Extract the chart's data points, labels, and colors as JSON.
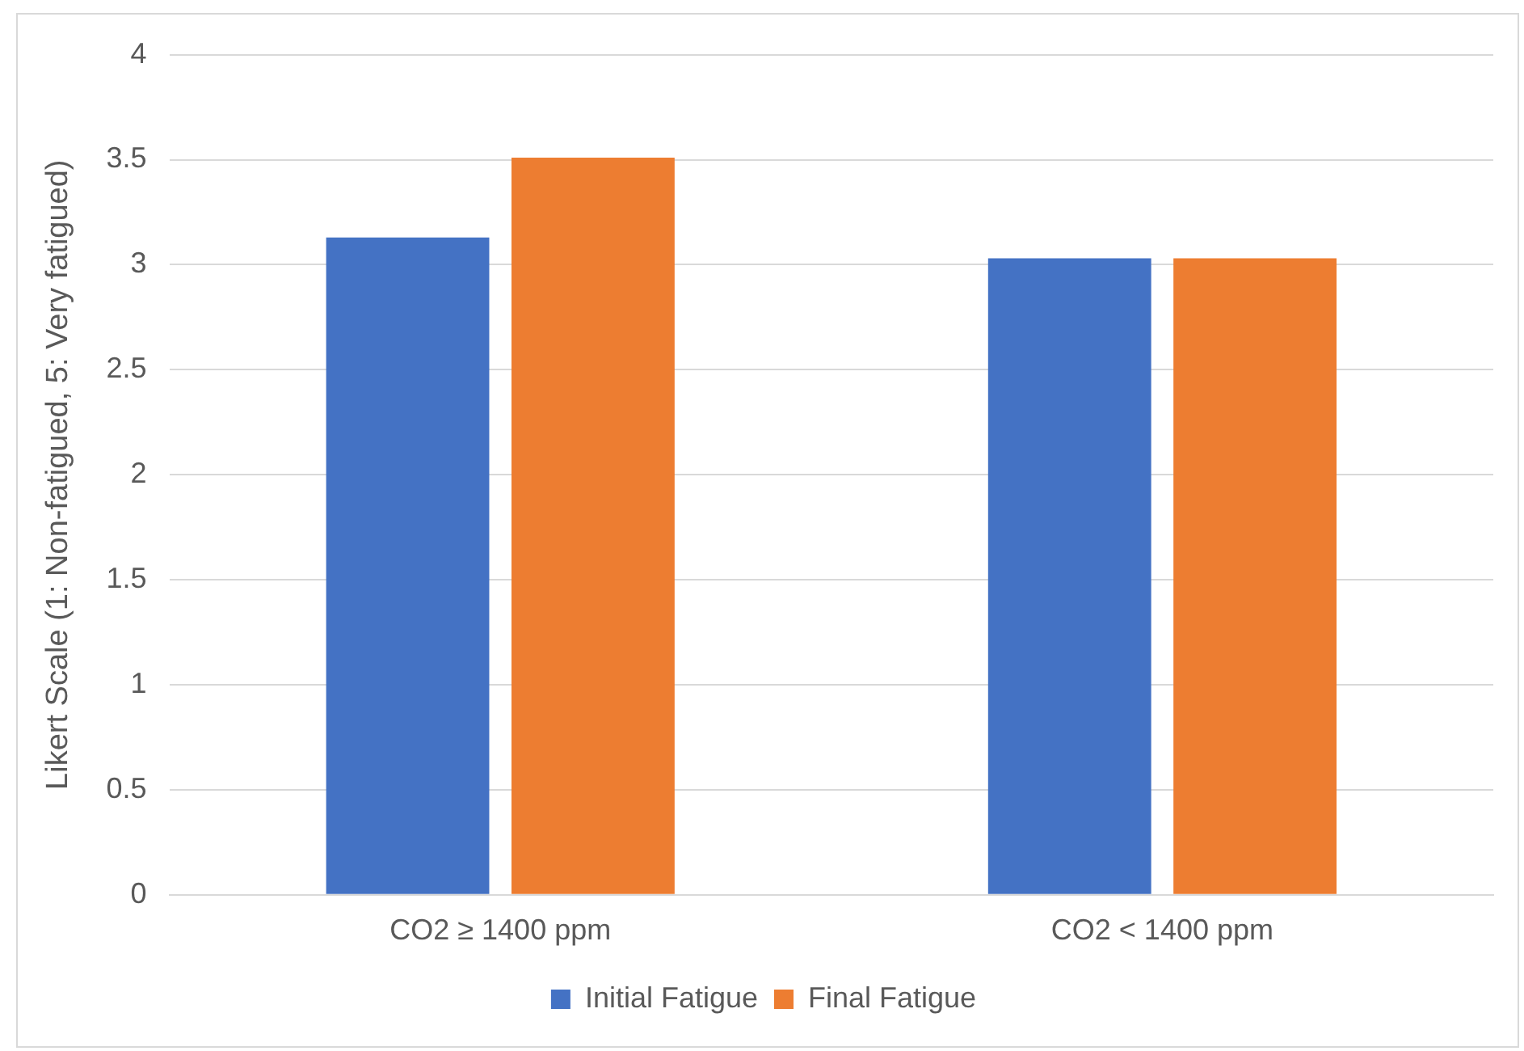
{
  "chart_data": {
    "type": "bar",
    "ylabel": "Likert Scale (1: Non-fatigued, 5: Very fatigued)",
    "categories": [
      "CO2 ≥ 1400 ppm",
      "CO2 < 1400 ppm"
    ],
    "series": [
      {
        "name": "Initial Fatigue",
        "color": "#4472c4",
        "values": [
          3.13,
          3.03
        ]
      },
      {
        "name": "Final Fatigue",
        "color": "#ed7d31",
        "values": [
          3.51,
          3.03
        ]
      }
    ],
    "ylim": [
      0,
      4
    ],
    "yticks": [
      0,
      0.5,
      1,
      1.5,
      2,
      2.5,
      3,
      3.5,
      4
    ],
    "grid": "y",
    "legend": "bottom"
  }
}
